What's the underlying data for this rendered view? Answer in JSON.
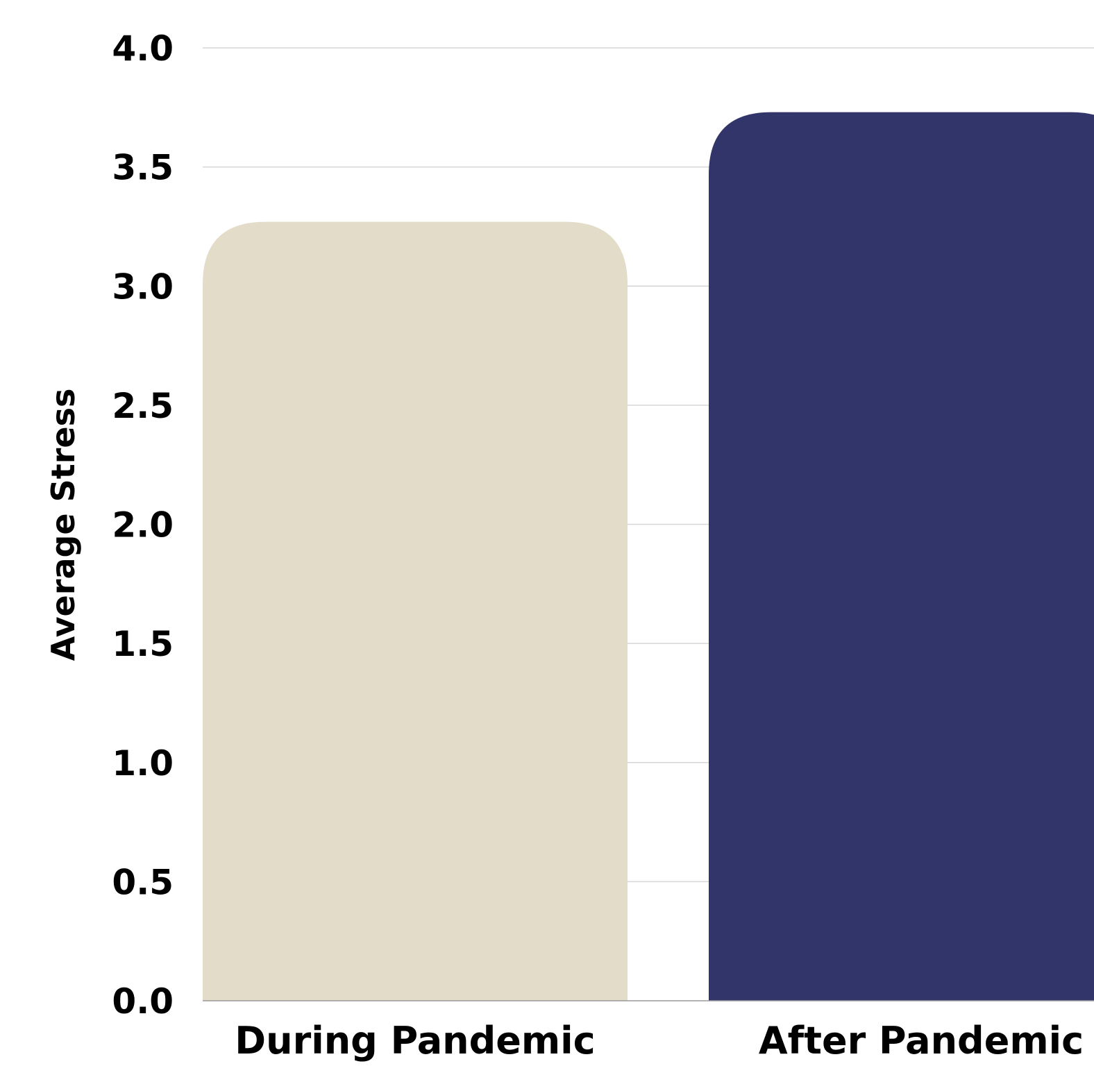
{
  "chart_data": {
    "type": "bar",
    "categories": [
      "During Pandemic",
      "After Pandemic"
    ],
    "values": [
      3.27,
      3.73
    ],
    "xlabel": "",
    "ylabel": "Average Stress",
    "ylim": [
      0,
      4.0
    ],
    "yticks": [
      "0.0",
      "0.5",
      "1.0",
      "1.5",
      "2.0",
      "2.5",
      "3.0",
      "3.5",
      "4.0"
    ],
    "grid": true,
    "colors": {
      "During Pandemic": "#e2dcc9",
      "After Pandemic": "#31356a"
    }
  }
}
